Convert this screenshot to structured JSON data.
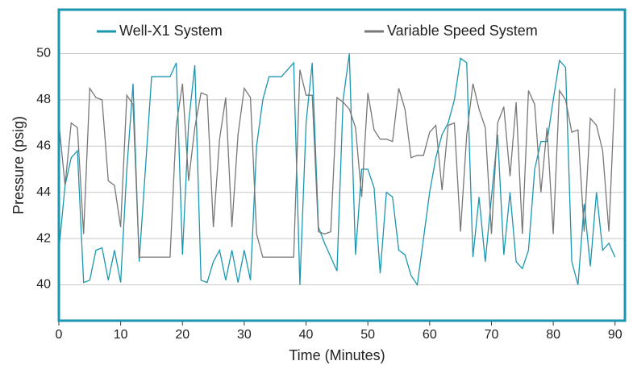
{
  "chart_data": {
    "type": "line",
    "x_label": "Time (Minutes)",
    "y_label": "Pressure (psig)",
    "x": [
      0,
      1,
      2,
      3,
      4,
      5,
      6,
      7,
      8,
      9,
      10,
      11,
      12,
      13,
      14,
      15,
      16,
      17,
      18,
      19,
      20,
      21,
      22,
      23,
      24,
      25,
      26,
      27,
      28,
      29,
      30,
      31,
      32,
      33,
      34,
      35,
      36,
      37,
      38,
      39,
      40,
      41,
      42,
      43,
      44,
      45,
      46,
      47,
      48,
      49,
      50,
      51,
      52,
      53,
      54,
      55,
      56,
      57,
      58,
      59,
      60,
      61,
      62,
      63,
      64,
      65,
      66,
      67,
      68,
      69,
      70,
      71,
      72,
      73,
      74,
      75,
      76,
      77,
      78,
      79,
      80,
      81,
      82,
      83,
      84,
      85,
      86,
      87,
      88,
      89,
      90
    ],
    "series": [
      {
        "name": "Well-X1 System",
        "color": "#1a96b0",
        "values": [
          41.5,
          44.3,
          45.5,
          45.8,
          40.1,
          40.2,
          41.5,
          41.6,
          40.2,
          41.5,
          40.1,
          45,
          48.7,
          41,
          45,
          49,
          49,
          49,
          49,
          49.6,
          41.3,
          47,
          49.5,
          40.2,
          40.1,
          41,
          41.5,
          40.2,
          41.5,
          40.1,
          41.5,
          40.2,
          46,
          48,
          49,
          49,
          49,
          49.3,
          49.6,
          40,
          47,
          49.6,
          42.5,
          41.8,
          41.2,
          40.6,
          48,
          50,
          41.3,
          45,
          45,
          44.2,
          40.5,
          44,
          43.8,
          41.5,
          41.3,
          40.4,
          40,
          42,
          44,
          45.5,
          46.5,
          47,
          48,
          49.8,
          49.6,
          41.2,
          43.8,
          41,
          43.8,
          46.5,
          41.3,
          44,
          41,
          40.7,
          41.5,
          45,
          46.2,
          46.2,
          48,
          49.7,
          49.4,
          41,
          40,
          43.5,
          40.8,
          44,
          41.5,
          41.8,
          41.2
        ]
      },
      {
        "name": "Variable Speed System",
        "color": "#777777",
        "values": [
          47,
          44.3,
          47,
          46.8,
          42.2,
          48.5,
          48.1,
          48,
          44.5,
          44.3,
          42.5,
          48.2,
          47.8,
          41.2,
          41.2,
          41.2,
          41.2,
          41.2,
          41.2,
          46.9,
          48.7,
          44.5,
          46.8,
          48.3,
          48.2,
          42.5,
          46.3,
          48.1,
          42.5,
          46.5,
          48.5,
          48.1,
          42.2,
          41.2,
          41.2,
          41.2,
          41.2,
          41.2,
          41.2,
          49.3,
          48.2,
          48.2,
          42.3,
          42.2,
          42.3,
          48.1,
          47.9,
          47.6,
          46.8,
          43.8,
          48.3,
          46.7,
          46.3,
          46.3,
          46.2,
          48.5,
          47.6,
          45.5,
          45.6,
          45.6,
          46.6,
          46.9,
          44.1,
          46.9,
          47,
          42.3,
          46.5,
          48.7,
          47.6,
          46.8,
          42.2,
          47,
          47.7,
          44.7,
          47.9,
          42.2,
          48.4,
          47.8,
          44,
          46.8,
          42.2,
          48.4,
          48,
          46.6,
          46.7,
          42.3,
          47.2,
          46.9,
          45.8,
          42.3,
          48.5
        ]
      }
    ],
    "xlim": [
      0,
      91.6
    ],
    "ylim": [
      38.45,
      51.9
    ],
    "xticks": [
      0,
      10,
      20,
      30,
      40,
      50,
      60,
      70,
      80,
      90
    ],
    "yticks": [
      40,
      42,
      44,
      46,
      48,
      50
    ],
    "grid": true,
    "legend": "top",
    "frame_color": "#1a96b0"
  }
}
